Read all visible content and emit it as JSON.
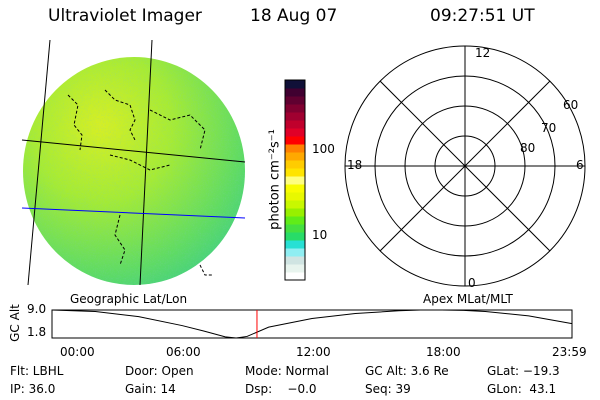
{
  "header": {
    "instrument": "Ultraviolet Imager",
    "date": "18 Aug 07",
    "time": "09:27:51 UT"
  },
  "colorbar": {
    "label": "photon cm⁻²s⁻¹",
    "ticks": [
      "100",
      "10"
    ],
    "colors": [
      "#ffffff",
      "#e8f4ee",
      "#d0e4e2",
      "#90eef2",
      "#28e0d4",
      "#28dc68",
      "#44e040",
      "#60ec18",
      "#98f000",
      "#c8f800",
      "#e8f800",
      "#f8fc00",
      "#fefe80",
      "#ffe400",
      "#ffcc00",
      "#ffa800",
      "#ff8000",
      "#ff0000",
      "#e00028",
      "#c0002c",
      "#a00030",
      "#800030",
      "#600030",
      "#400030",
      "#101038"
    ]
  },
  "polar": {
    "mlt_labels": [
      "12",
      "18",
      "6",
      "0"
    ],
    "lat_labels": [
      "60",
      "70",
      "80"
    ]
  },
  "panel_labels": {
    "left": "Geographic Lat/Lon",
    "right": "Apex MLat/MLT"
  },
  "chart_data": {
    "type": "line",
    "ylabel": "GC Alt",
    "yticks": [
      "9.0",
      "1.8"
    ],
    "ylim": [
      1.8,
      9.0
    ],
    "xticks": [
      "00:00",
      "06:00",
      "12:00",
      "18:00",
      "23:59"
    ],
    "xlim_hours": [
      0,
      24
    ],
    "x_hours": [
      0,
      2,
      4,
      6,
      7,
      8,
      8.5,
      9,
      10,
      12,
      14,
      16,
      17,
      18,
      19,
      20,
      22,
      24
    ],
    "y": [
      9.0,
      8.6,
      7.3,
      5.0,
      3.6,
      2.1,
      1.8,
      2.2,
      4.6,
      6.8,
      8.1,
      8.8,
      9.0,
      9.0,
      8.9,
      8.6,
      7.5,
      5.5
    ],
    "current_time_hours": 9.46,
    "marker_color": "#ff0000"
  },
  "info": [
    [
      "Flt: LBHL",
      "Door: Open",
      "Mode: Normal",
      "GC Alt: 3.6 Re",
      "GLat: −19.3"
    ],
    [
      "IP: 36.0",
      "Gain: 14",
      "Dsp:    −0.0",
      "Seq: 39",
      "GLon:  43.1"
    ]
  ]
}
